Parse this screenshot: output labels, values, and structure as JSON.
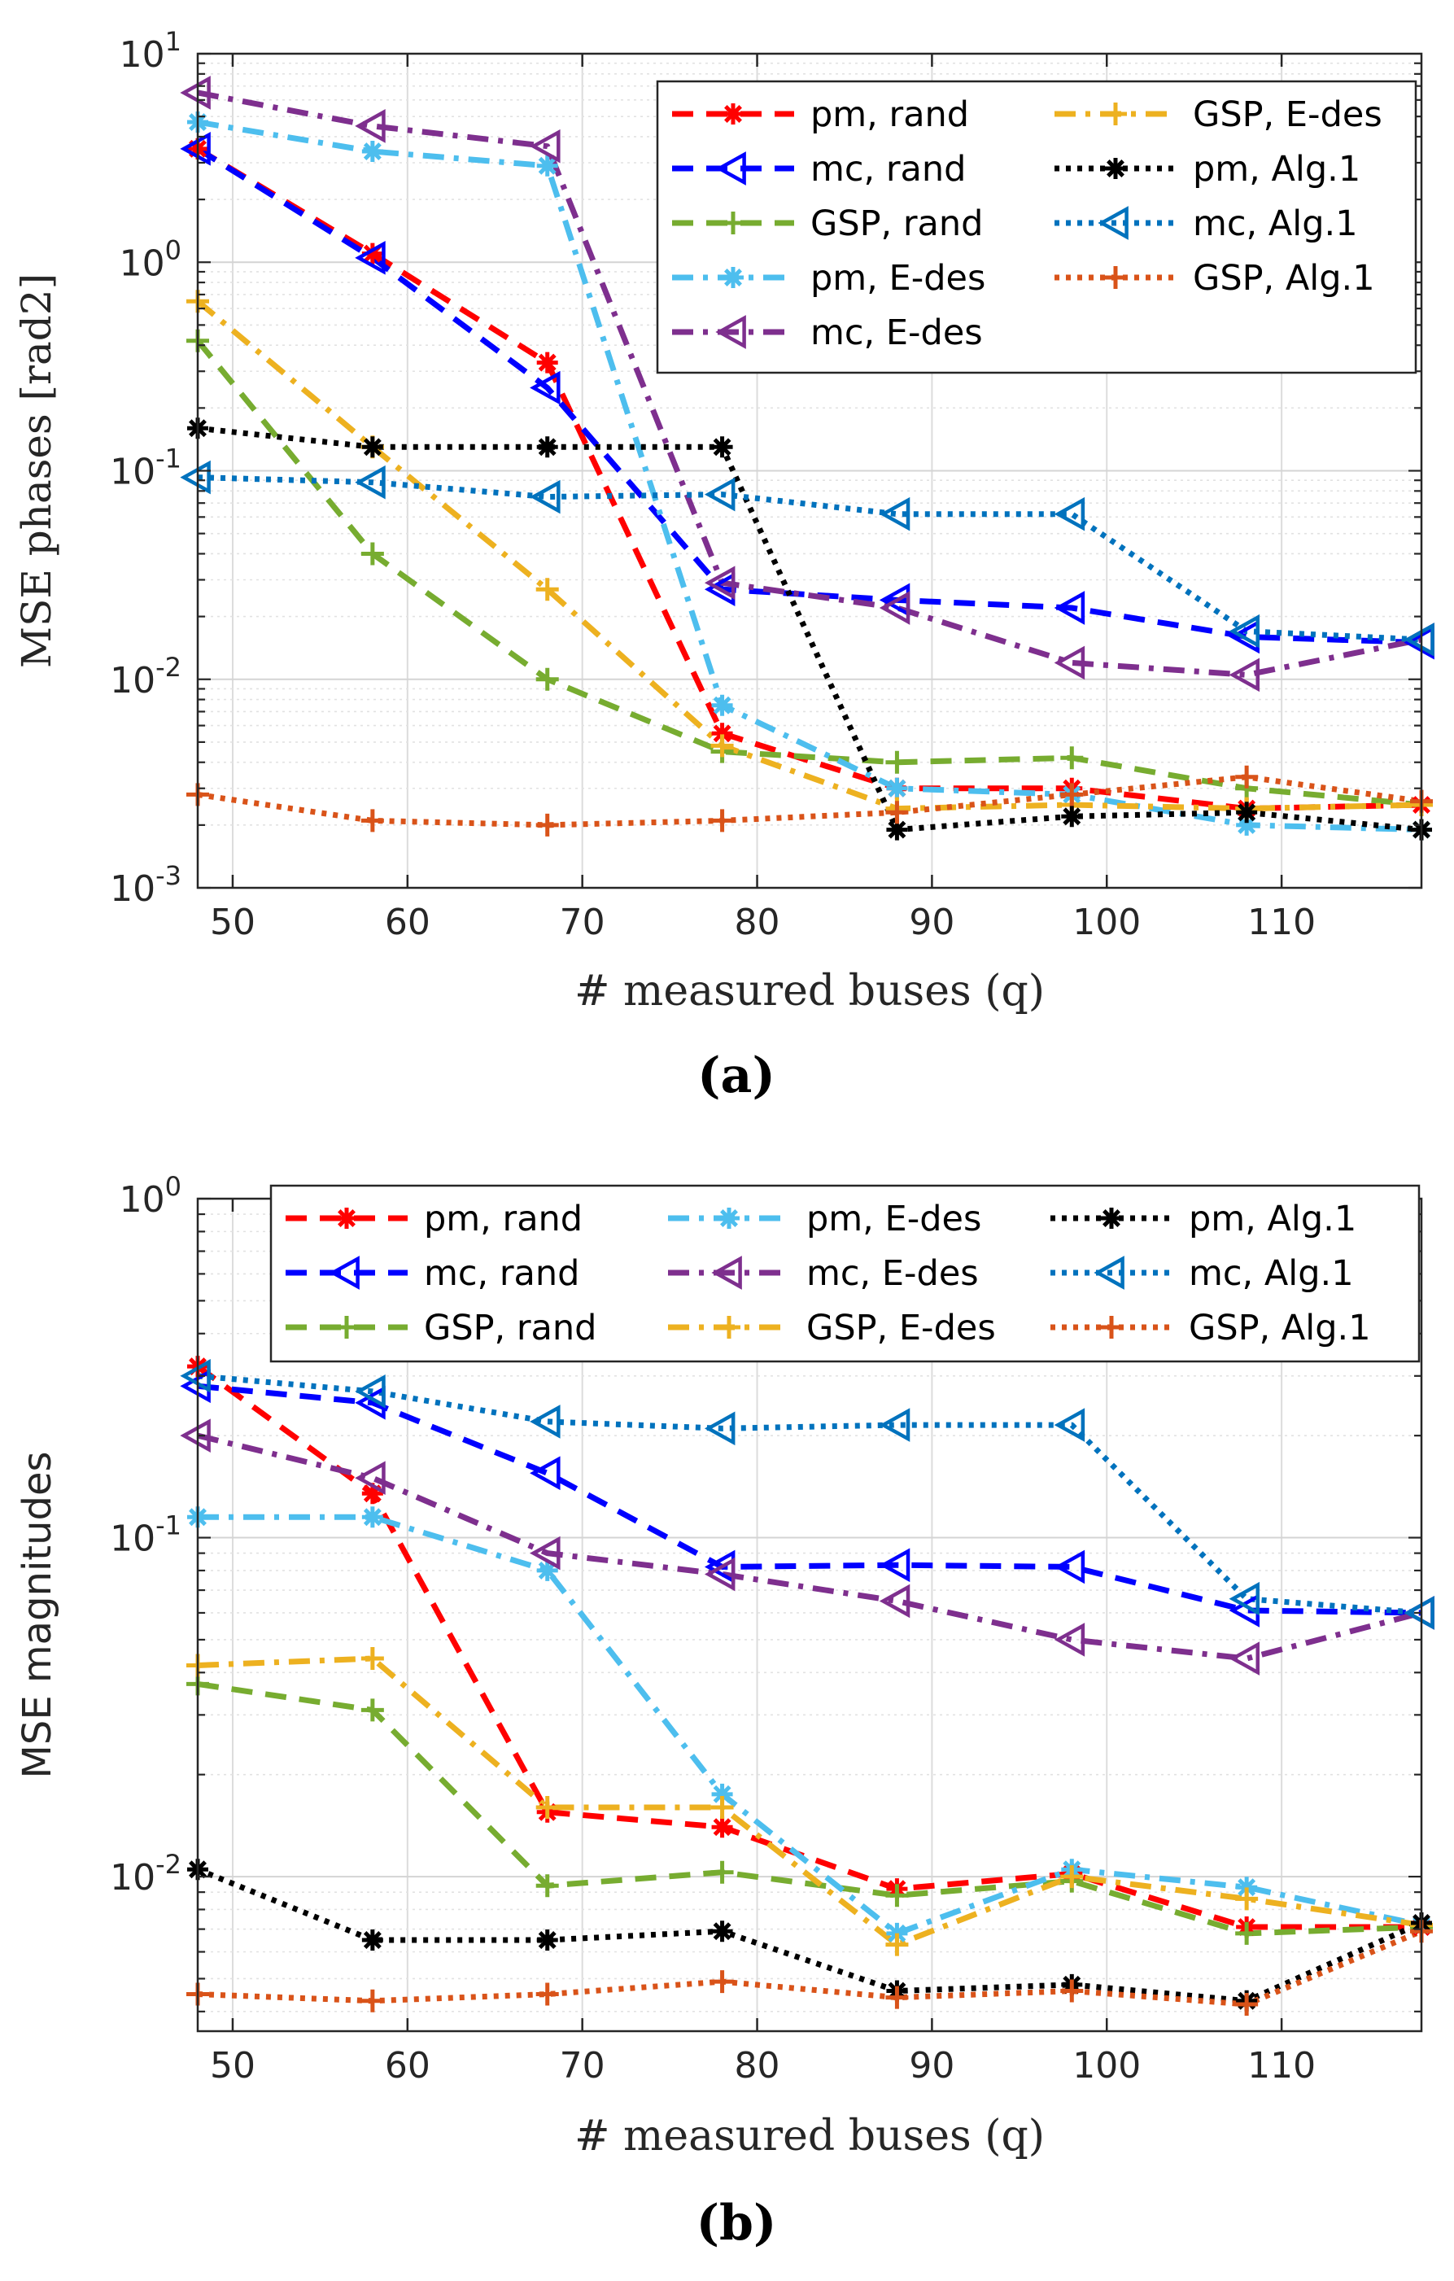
{
  "chart_data": [
    {
      "id": "a",
      "type": "line",
      "caption": "(a)",
      "xlabel": "# measured buses (q)",
      "ylabel": "MSE phases [rad2]",
      "yscale": "log",
      "xlim": [
        48,
        118
      ],
      "ylim": [
        0.001,
        10
      ],
      "xticks": [
        50,
        60,
        70,
        80,
        90,
        100,
        110
      ],
      "xticklabels": [
        "50",
        "60",
        "70",
        "80",
        "90",
        "100",
        "110"
      ],
      "yticks": [
        0.001,
        0.01,
        0.1,
        1,
        10
      ],
      "ytick_base": "10",
      "ytick_exps": [
        "-3",
        "-2",
        "-1",
        "0",
        "1"
      ],
      "grid": true,
      "legend_position": "top-right",
      "legend_columns": 2,
      "x": [
        48,
        58,
        68,
        78,
        88,
        98,
        108,
        118
      ],
      "series": [
        {
          "name": "pm, rand",
          "color": "#ff0000",
          "dash": "dashed",
          "marker": "star",
          "values": [
            3.5,
            1.1,
            0.33,
            0.0055,
            0.003,
            0.003,
            0.0024,
            0.0025
          ]
        },
        {
          "name": "mc, rand",
          "color": "#0000ff",
          "dash": "dashed",
          "marker": "triangle-left",
          "values": [
            3.5,
            1.05,
            0.25,
            0.027,
            0.024,
            0.022,
            0.016,
            0.015
          ]
        },
        {
          "name": "GSP, rand",
          "color": "#77ac30",
          "dash": "dashed",
          "marker": "plus",
          "values": [
            0.42,
            0.04,
            0.01,
            0.0045,
            0.004,
            0.0042,
            0.003,
            0.0025
          ]
        },
        {
          "name": "pm, E-des",
          "color": "#4dbeee",
          "dash": "dashdot",
          "marker": "star",
          "values": [
            4.7,
            3.4,
            2.9,
            0.0075,
            0.003,
            0.0028,
            0.002,
            0.0019
          ]
        },
        {
          "name": "mc, E-des",
          "color": "#7e2f8e",
          "dash": "dashdot",
          "marker": "triangle-left",
          "values": [
            6.5,
            4.5,
            3.6,
            0.029,
            0.022,
            0.012,
            0.0105,
            0.0155
          ]
        },
        {
          "name": "GSP, E-des",
          "color": "#edb120",
          "dash": "dashdot",
          "marker": "plus",
          "values": [
            0.65,
            0.13,
            0.027,
            0.0048,
            0.0024,
            0.0025,
            0.0024,
            0.0025
          ]
        },
        {
          "name": "pm, Alg.1",
          "color": "#000000",
          "dash": "dotted",
          "marker": "star",
          "values": [
            0.16,
            0.13,
            0.13,
            0.13,
            0.0019,
            0.0022,
            0.0023,
            0.0019
          ]
        },
        {
          "name": "mc, Alg.1",
          "color": "#0072bd",
          "dash": "dotted",
          "marker": "triangle-left",
          "values": [
            0.093,
            0.088,
            0.075,
            0.077,
            0.062,
            0.062,
            0.017,
            0.0155
          ]
        },
        {
          "name": "GSP, Alg.1",
          "color": "#d95319",
          "dash": "dotted",
          "marker": "plus",
          "values": [
            0.0028,
            0.0021,
            0.002,
            0.0021,
            0.0023,
            0.0028,
            0.0034,
            0.0026
          ]
        }
      ]
    },
    {
      "id": "b",
      "type": "line",
      "caption": "(b)",
      "xlabel": "# measured buses (q)",
      "ylabel": "MSE magnitudes",
      "yscale": "log",
      "xlim": [
        48,
        118
      ],
      "ylim": [
        0.0035,
        1
      ],
      "xticks": [
        50,
        60,
        70,
        80,
        90,
        100,
        110
      ],
      "xticklabels": [
        "50",
        "60",
        "70",
        "80",
        "90",
        "100",
        "110"
      ],
      "yticks": [
        0.01,
        0.1,
        1
      ],
      "ytick_base": "10",
      "ytick_exps": [
        "-2",
        "-1",
        "0"
      ],
      "grid": true,
      "legend_position": "top-right",
      "legend_columns": 3,
      "x": [
        48,
        58,
        68,
        78,
        88,
        98,
        108,
        118
      ],
      "series": [
        {
          "name": "pm, rand",
          "color": "#ff0000",
          "dash": "dashed",
          "marker": "star",
          "values": [
            0.32,
            0.135,
            0.0155,
            0.014,
            0.0092,
            0.0102,
            0.0071,
            0.0071
          ]
        },
        {
          "name": "mc, rand",
          "color": "#0000ff",
          "dash": "dashed",
          "marker": "triangle-left",
          "values": [
            0.28,
            0.25,
            0.155,
            0.082,
            0.083,
            0.082,
            0.061,
            0.06
          ]
        },
        {
          "name": "GSP, rand",
          "color": "#77ac30",
          "dash": "dashed",
          "marker": "plus",
          "values": [
            0.037,
            0.031,
            0.0094,
            0.0103,
            0.0088,
            0.0097,
            0.0068,
            0.0071
          ]
        },
        {
          "name": "pm, E-des",
          "color": "#4dbeee",
          "dash": "dashdot",
          "marker": "star",
          "values": [
            0.115,
            0.115,
            0.08,
            0.0175,
            0.0068,
            0.0105,
            0.0093,
            0.0072
          ]
        },
        {
          "name": "mc, E-des",
          "color": "#7e2f8e",
          "dash": "dashdot",
          "marker": "triangle-left",
          "values": [
            0.2,
            0.15,
            0.09,
            0.078,
            0.065,
            0.05,
            0.044,
            0.06
          ]
        },
        {
          "name": "GSP, E-des",
          "color": "#edb120",
          "dash": "dashdot",
          "marker": "plus",
          "values": [
            0.042,
            0.044,
            0.016,
            0.016,
            0.0063,
            0.01,
            0.0086,
            0.0072
          ]
        },
        {
          "name": "pm, Alg.1",
          "color": "#000000",
          "dash": "dotted",
          "marker": "star",
          "values": [
            0.0105,
            0.0065,
            0.0065,
            0.0069,
            0.0046,
            0.0048,
            0.0043,
            0.0073
          ]
        },
        {
          "name": "mc, Alg.1",
          "color": "#0072bd",
          "dash": "dotted",
          "marker": "triangle-left",
          "values": [
            0.3,
            0.27,
            0.22,
            0.21,
            0.215,
            0.215,
            0.066,
            0.06
          ]
        },
        {
          "name": "GSP, Alg.1",
          "color": "#d95319",
          "dash": "dotted",
          "marker": "plus",
          "values": [
            0.0045,
            0.0043,
            0.0045,
            0.0049,
            0.0044,
            0.0046,
            0.0042,
            0.0069
          ]
        }
      ]
    }
  ]
}
